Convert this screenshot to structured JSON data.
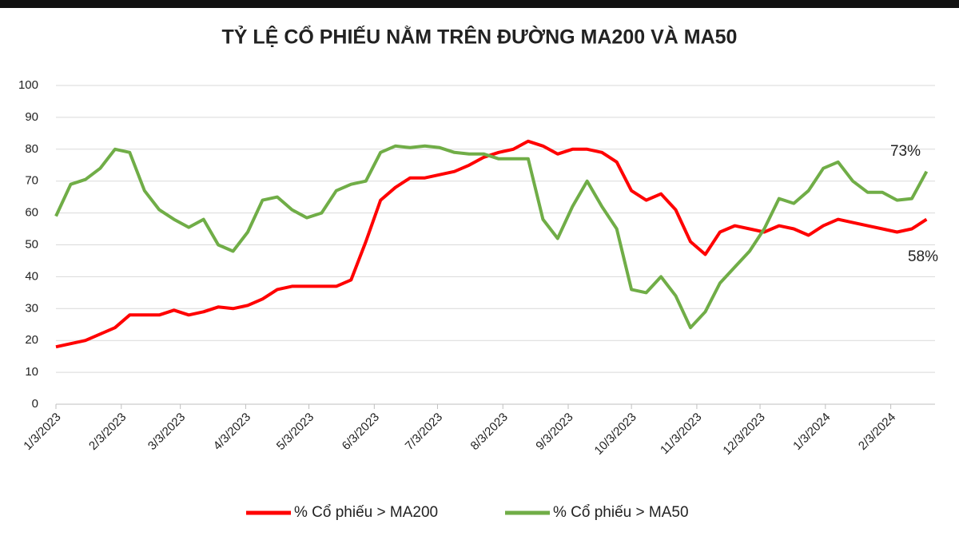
{
  "chart_data": {
    "type": "line",
    "title": "TỶ LỆ CỔ PHIẾU NẰM TRÊN ĐƯỜNG MA200 VÀ MA50",
    "x": [
      "2023-01-03",
      "2023-01-10",
      "2023-01-17",
      "2023-01-24",
      "2023-01-31",
      "2023-02-07",
      "2023-02-14",
      "2023-02-21",
      "2023-02-28",
      "2023-03-07",
      "2023-03-14",
      "2023-03-21",
      "2023-03-28",
      "2023-04-04",
      "2023-04-11",
      "2023-04-18",
      "2023-04-25",
      "2023-05-02",
      "2023-05-09",
      "2023-05-16",
      "2023-05-23",
      "2023-05-30",
      "2023-06-06",
      "2023-06-13",
      "2023-06-20",
      "2023-06-27",
      "2023-07-04",
      "2023-07-11",
      "2023-07-18",
      "2023-07-25",
      "2023-08-01",
      "2023-08-08",
      "2023-08-15",
      "2023-08-22",
      "2023-08-29",
      "2023-09-05",
      "2023-09-12",
      "2023-09-19",
      "2023-09-26",
      "2023-10-03",
      "2023-10-10",
      "2023-10-17",
      "2023-10-24",
      "2023-10-31",
      "2023-11-07",
      "2023-11-14",
      "2023-11-21",
      "2023-11-28",
      "2023-12-05",
      "2023-12-12",
      "2023-12-19",
      "2023-12-26",
      "2024-01-02",
      "2024-01-09",
      "2024-01-16",
      "2024-01-23",
      "2024-01-30",
      "2024-02-06",
      "2024-02-13",
      "2024-02-20"
    ],
    "series": [
      {
        "name": "% Cổ phiếu > MA200",
        "color": "#ff0000",
        "values": [
          18,
          19,
          20,
          22,
          24,
          28,
          28,
          28,
          29.5,
          28,
          29,
          30.5,
          30,
          31,
          33,
          36,
          37,
          37,
          37,
          37,
          39,
          51,
          64,
          68,
          71,
          71,
          72,
          73,
          75,
          77.5,
          79,
          80,
          82.5,
          81,
          78.5,
          80,
          80,
          79,
          76,
          67,
          64,
          66,
          61,
          51,
          47,
          54,
          56,
          55,
          54,
          56,
          55,
          53,
          56,
          58,
          57,
          56,
          55,
          54,
          55,
          58
        ]
      },
      {
        "name": "% Cổ phiếu > MA50",
        "color": "#70ad47",
        "values": [
          59,
          69,
          70.5,
          74,
          80,
          79,
          67,
          61,
          58,
          55.5,
          58,
          50,
          48,
          54,
          64,
          65,
          61,
          58.5,
          60,
          67,
          69,
          70,
          79,
          81,
          80.5,
          81,
          80.5,
          79,
          78.5,
          78.5,
          77,
          77,
          77,
          58,
          52,
          62,
          70,
          62,
          55,
          36,
          35,
          40,
          34,
          24,
          29,
          38,
          43,
          48,
          55,
          64.5,
          63,
          67,
          74,
          76,
          70,
          66.5,
          66.5,
          64,
          64.5,
          73
        ]
      }
    ],
    "annotations": [
      "73%",
      "58%"
    ],
    "xlim": [
      "2023-01-03",
      "2024-02-24"
    ],
    "xticks": [
      {
        "value": "2023-01-03",
        "label": "1/3/2023"
      },
      {
        "value": "2023-02-03",
        "label": "2/3/2023"
      },
      {
        "value": "2023-03-03",
        "label": "3/3/2023"
      },
      {
        "value": "2023-04-03",
        "label": "4/3/2023"
      },
      {
        "value": "2023-05-03",
        "label": "5/3/2023"
      },
      {
        "value": "2023-06-03",
        "label": "6/3/2023"
      },
      {
        "value": "2023-07-03",
        "label": "7/3/2023"
      },
      {
        "value": "2023-08-03",
        "label": "8/3/2023"
      },
      {
        "value": "2023-09-03",
        "label": "9/3/2023"
      },
      {
        "value": "2023-10-03",
        "label": "10/3/2023"
      },
      {
        "value": "2023-11-03",
        "label": "11/3/2023"
      },
      {
        "value": "2023-12-03",
        "label": "12/3/2023"
      },
      {
        "value": "2024-01-03",
        "label": "1/3/2024"
      },
      {
        "value": "2024-02-03",
        "label": "2/3/2024"
      }
    ],
    "ylim": [
      0,
      100
    ],
    "yticks": [
      0,
      10,
      20,
      30,
      40,
      50,
      60,
      70,
      80,
      90,
      100
    ],
    "grid": true
  }
}
